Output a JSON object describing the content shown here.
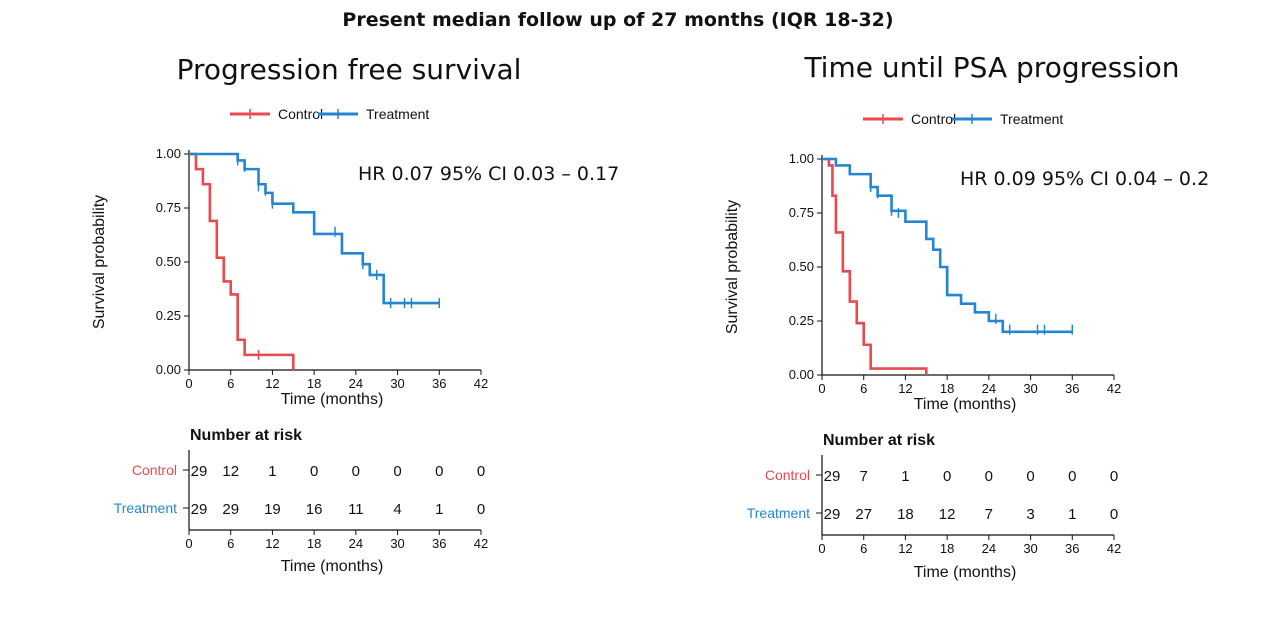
{
  "headline": "Present median follow up of 27 months (IQR 18-32)",
  "colors": {
    "control": "#e84a4f",
    "treatment": "#2585d0",
    "axis": "#111111"
  },
  "chart_data": [
    {
      "type": "line",
      "subtype": "kaplan-meier",
      "title": "Progression free survival",
      "hr_text": "HR 0.07 95% CI 0.03 – 0.17",
      "xlabel": "Time (months)",
      "ylabel": "Survival probability",
      "xlim": [
        0,
        42
      ],
      "ylim": [
        0,
        1
      ],
      "xticks": [
        "0",
        "6",
        "12",
        "18",
        "24",
        "30",
        "36",
        "42"
      ],
      "yticks": [
        "0.00",
        "0.25",
        "0.50",
        "0.75",
        "1.00"
      ],
      "legend": [
        "Control",
        "Treatment"
      ],
      "series": [
        {
          "name": "Control",
          "steps": [
            [
              0,
              1.0
            ],
            [
              1,
              0.93
            ],
            [
              2,
              0.86
            ],
            [
              3,
              0.69
            ],
            [
              4,
              0.52
            ],
            [
              5,
              0.41
            ],
            [
              6,
              0.35
            ],
            [
              7,
              0.14
            ],
            [
              8,
              0.07
            ],
            [
              15,
              0.0
            ]
          ],
          "censors": [
            [
              10,
              0.07
            ]
          ]
        },
        {
          "name": "Treatment",
          "steps": [
            [
              0,
              1.0
            ],
            [
              7,
              0.97
            ],
            [
              8,
              0.93
            ],
            [
              10,
              0.86
            ],
            [
              11,
              0.82
            ],
            [
              12,
              0.77
            ],
            [
              15,
              0.73
            ],
            [
              18,
              0.63
            ],
            [
              22,
              0.54
            ],
            [
              25,
              0.49
            ],
            [
              26,
              0.44
            ],
            [
              28,
              0.31
            ]
          ],
          "censors": [
            [
              7,
              0.97
            ],
            [
              8,
              0.94
            ],
            [
              10,
              0.85
            ],
            [
              11,
              0.83
            ],
            [
              12,
              0.77
            ],
            [
              21,
              0.64
            ],
            [
              25,
              0.49
            ],
            [
              27,
              0.44
            ],
            [
              29,
              0.31
            ],
            [
              31,
              0.31
            ],
            [
              32,
              0.31
            ],
            [
              36,
              0.31
            ]
          ],
          "end": 36
        }
      ],
      "risk_table": {
        "title": "Number at risk",
        "xlabel": "Time (months)",
        "xticks": [
          "0",
          "6",
          "12",
          "18",
          "24",
          "30",
          "36",
          "42"
        ],
        "groups": [
          {
            "name": "Control",
            "values": [
              "29",
              "12",
              "1",
              "0",
              "0",
              "0",
              "0",
              "0"
            ]
          },
          {
            "name": "Treatment",
            "values": [
              "29",
              "29",
              "19",
              "16",
              "11",
              "4",
              "1",
              "0"
            ]
          }
        ]
      }
    },
    {
      "type": "line",
      "subtype": "kaplan-meier",
      "title": "Time until PSA progression",
      "hr_text": "HR 0.09 95% CI 0.04 – 0.2",
      "xlabel": "Time (months)",
      "ylabel": "Survival probability",
      "xlim": [
        0,
        42
      ],
      "ylim": [
        0,
        1
      ],
      "xticks": [
        "0",
        "6",
        "12",
        "18",
        "24",
        "30",
        "36",
        "42"
      ],
      "yticks": [
        "0.00",
        "0.25",
        "0.50",
        "0.75",
        "1.00"
      ],
      "legend": [
        "Control",
        "Treatment"
      ],
      "series": [
        {
          "name": "Control",
          "steps": [
            [
              0,
              1.0
            ],
            [
              1,
              0.97
            ],
            [
              1.5,
              0.83
            ],
            [
              2,
              0.66
            ],
            [
              3,
              0.48
            ],
            [
              4,
              0.34
            ],
            [
              5,
              0.24
            ],
            [
              6,
              0.14
            ],
            [
              7,
              0.03
            ],
            [
              15,
              0.0
            ]
          ],
          "censors": []
        },
        {
          "name": "Treatment",
          "steps": [
            [
              0,
              1.0
            ],
            [
              2,
              0.97
            ],
            [
              4,
              0.93
            ],
            [
              7,
              0.87
            ],
            [
              8,
              0.83
            ],
            [
              10,
              0.76
            ],
            [
              12,
              0.71
            ],
            [
              15,
              0.63
            ],
            [
              16,
              0.58
            ],
            [
              17,
              0.5
            ],
            [
              18,
              0.37
            ],
            [
              20,
              0.33
            ],
            [
              22,
              0.29
            ],
            [
              24,
              0.25
            ],
            [
              26,
              0.2
            ]
          ],
          "censors": [
            [
              7,
              0.87
            ],
            [
              8,
              0.84
            ],
            [
              10,
              0.76
            ],
            [
              11,
              0.75
            ],
            [
              25,
              0.26
            ],
            [
              27,
              0.21
            ],
            [
              31,
              0.21
            ],
            [
              32,
              0.21
            ],
            [
              36,
              0.21
            ]
          ],
          "end": 36
        }
      ],
      "risk_table": {
        "title": "Number at risk",
        "xlabel": "Time (months)",
        "xticks": [
          "0",
          "6",
          "12",
          "18",
          "24",
          "30",
          "36",
          "42"
        ],
        "groups": [
          {
            "name": "Control",
            "values": [
              "29",
              "7",
              "1",
              "0",
              "0",
              "0",
              "0",
              "0"
            ]
          },
          {
            "name": "Treatment",
            "values": [
              "29",
              "27",
              "18",
              "12",
              "7",
              "3",
              "1",
              "0"
            ]
          }
        ]
      }
    }
  ]
}
